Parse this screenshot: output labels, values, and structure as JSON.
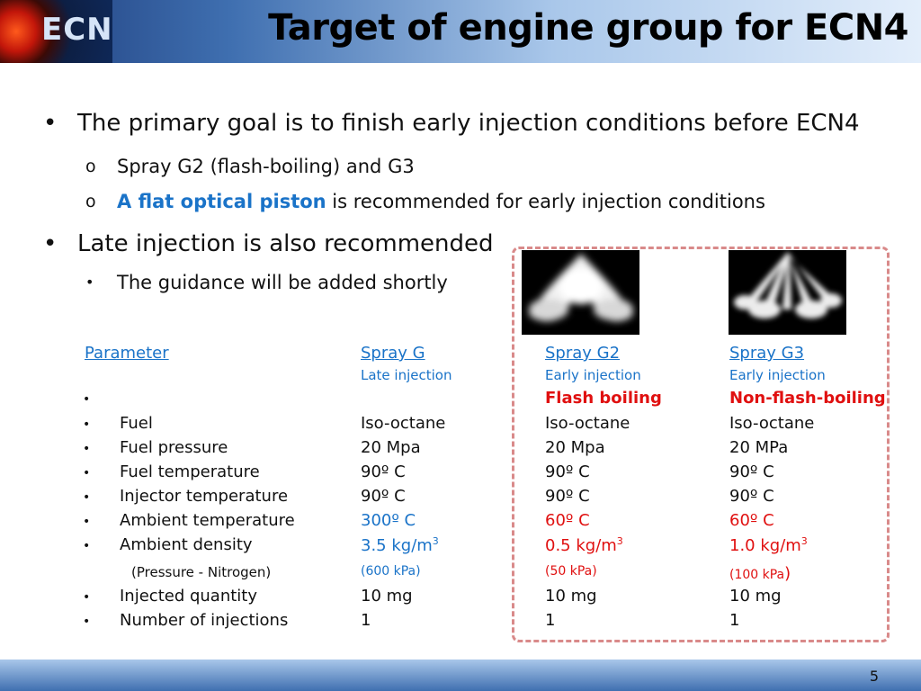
{
  "header": {
    "logo_text": "ECN",
    "title": "Target of engine group for ECN4"
  },
  "bullets": {
    "b1": "The primary goal is to finish early injection conditions before ECN4",
    "b1_sub1": "Spray G2 (flash-boiling) and G3",
    "b1_sub2_highlight": "A flat optical piston",
    "b1_sub2_rest": " is recommended for early injection conditions",
    "b2": "Late injection is also recommended",
    "b2_sub1": "The guidance will be added shortly"
  },
  "table": {
    "headers": [
      "Parameter ",
      "Spray G",
      "Spray G2",
      "Spray G3"
    ],
    "subheaders": [
      "Late injection",
      "Early injection",
      "Early injection"
    ],
    "boiling": [
      "Flash boiling",
      "Non-flash-boiling"
    ],
    "rows": [
      {
        "param": "Fuel",
        "g": "Iso-octane",
        "g2": "Iso-octane",
        "g3": "Iso-octane"
      },
      {
        "param": "Fuel pressure",
        "g": "20 Mpa",
        "g2": "20 Mpa",
        "g3": "20 MPa"
      },
      {
        "param": "Fuel temperature",
        "g": "90º C",
        "g2": "90º C",
        "g3": "90º C"
      },
      {
        "param": "Injector temperature",
        "g": "90º C",
        "g2": "90º C",
        "g3": "90º C"
      },
      {
        "param": "Ambient temperature",
        "g": "300º C",
        "g2": "60º C",
        "g3": "60º C"
      },
      {
        "param": "Ambient density",
        "g": "3.5 kg/m",
        "g2": "0.5 kg/m",
        "g3": "1.0 kg/m"
      },
      {
        "param": "Injected quantity",
        "g": "10 mg",
        "g2": "10 mg",
        "g3": "10 mg"
      },
      {
        "param": "Number of injections",
        "g": "1",
        "g2": "1",
        "g3": "1"
      }
    ],
    "density_sup": "3",
    "pressure_note": "(Pressure - Nitrogen)",
    "pressures": [
      "(600 kPa)",
      "(50 kPa)",
      "(100 kPa",
      ")"
    ]
  },
  "footer": {
    "page": "5"
  },
  "colors": {
    "accent_blue": "#1a73c8",
    "accent_red": "#e01010",
    "box_dash": "#d98a8a"
  }
}
